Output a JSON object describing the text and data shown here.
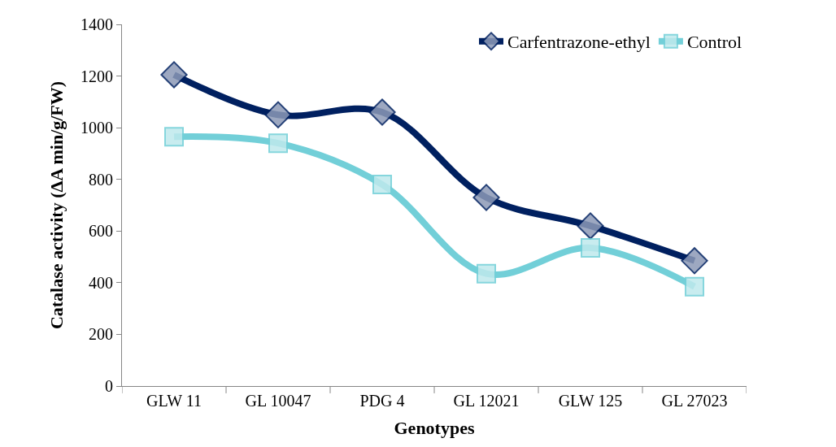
{
  "chart_data": {
    "type": "line",
    "xlabel": "Genotypes",
    "ylabel": "Catalase activity (ΔA min/g/FW)",
    "categories": [
      "GLW 11",
      "GL 10047",
      "PDG 4",
      "GL 12021",
      "GLW 125",
      "GL 27023"
    ],
    "series": [
      {
        "name": "Carfentrazone-ethyl",
        "color": "#002060",
        "marker": "diamond",
        "values": [
          1205,
          1050,
          1060,
          730,
          620,
          485
        ]
      },
      {
        "name": "Control",
        "color": "#72cfd8",
        "marker": "square",
        "values": [
          965,
          940,
          780,
          435,
          535,
          385
        ]
      }
    ],
    "ylim": [
      0,
      1400
    ],
    "yticks": [
      0,
      200,
      400,
      600,
      800,
      1000,
      1200,
      1400
    ],
    "legend": "top right"
  }
}
